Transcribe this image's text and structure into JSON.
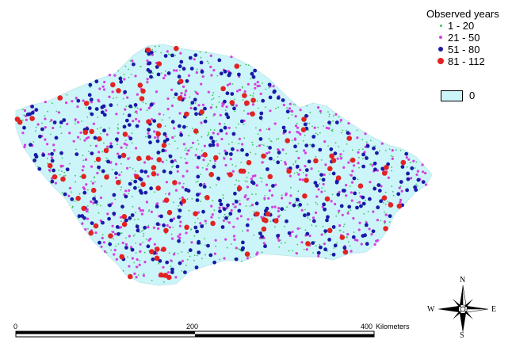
{
  "legend": {
    "title": "Observed years",
    "classes": [
      {
        "label": "1 - 20",
        "color": "#3fc25a",
        "size": "smallest"
      },
      {
        "label": "21 - 50",
        "color": "#d43fdf",
        "size": "small"
      },
      {
        "label": "51 - 80",
        "color": "#1a1aa8",
        "size": "medium"
      },
      {
        "label": "81 - 112",
        "color": "#e32222",
        "size": "large"
      }
    ],
    "area_label": "0",
    "area_color": "#ccf5f9"
  },
  "scale_bar": {
    "ticks": [
      "0",
      "200",
      "400"
    ],
    "units": "Kilometers"
  },
  "compass": {
    "n": "N",
    "s": "S",
    "e": "E",
    "w": "W"
  }
}
